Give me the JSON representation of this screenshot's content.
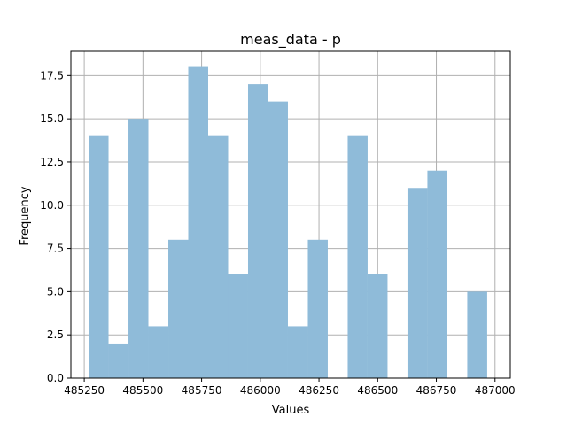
{
  "chart_data": {
    "type": "bar",
    "title": "meas_data - p",
    "xlabel": "Values",
    "ylabel": "Frequency",
    "grid": true,
    "bar_color": "#8fbbd9",
    "grid_color": "#b0b0b0",
    "xlim": [
      485193,
      487065
    ],
    "ylim": [
      0,
      18.9
    ],
    "xticks": [
      485250,
      485500,
      485750,
      486000,
      486250,
      486500,
      486750,
      487000
    ],
    "xtick_labels": [
      "485250",
      "485500",
      "485750",
      "486000",
      "486250",
      "486500",
      "486750",
      "487000"
    ],
    "yticks": [
      0,
      2.5,
      5,
      7.5,
      10,
      12.5,
      15,
      17.5
    ],
    "ytick_labels": [
      "0.0",
      "2.5",
      "5.0",
      "7.5",
      "10.0",
      "12.5",
      "15.0",
      "17.5"
    ],
    "bins": [
      {
        "x0": 485268.6,
        "x1": 485353.5,
        "count": 14
      },
      {
        "x0": 485353.5,
        "x1": 485438.4,
        "count": 2
      },
      {
        "x0": 485438.4,
        "x1": 485523.3,
        "count": 15
      },
      {
        "x0": 485523.3,
        "x1": 485608.2,
        "count": 3
      },
      {
        "x0": 485608.2,
        "x1": 485693.1,
        "count": 8
      },
      {
        "x0": 485693.1,
        "x1": 485778.0,
        "count": 18
      },
      {
        "x0": 485778.0,
        "x1": 485862.9,
        "count": 14
      },
      {
        "x0": 485862.9,
        "x1": 485947.8,
        "count": 6
      },
      {
        "x0": 485947.8,
        "x1": 486032.7,
        "count": 17
      },
      {
        "x0": 486032.7,
        "x1": 486117.6,
        "count": 16
      },
      {
        "x0": 486117.6,
        "x1": 486202.5,
        "count": 3
      },
      {
        "x0": 486202.5,
        "x1": 486287.4,
        "count": 8
      },
      {
        "x0": 486287.4,
        "x1": 486372.3,
        "count": 0
      },
      {
        "x0": 486372.3,
        "x1": 486457.2,
        "count": 14
      },
      {
        "x0": 486457.2,
        "x1": 486542.1,
        "count": 6
      },
      {
        "x0": 486542.1,
        "x1": 486627.0,
        "count": 0
      },
      {
        "x0": 486627.0,
        "x1": 486711.9,
        "count": 11
      },
      {
        "x0": 486711.9,
        "x1": 486796.8,
        "count": 12
      },
      {
        "x0": 486796.8,
        "x1": 486881.7,
        "count": 0
      },
      {
        "x0": 486881.7,
        "x1": 486966.6,
        "count": 5
      }
    ]
  }
}
